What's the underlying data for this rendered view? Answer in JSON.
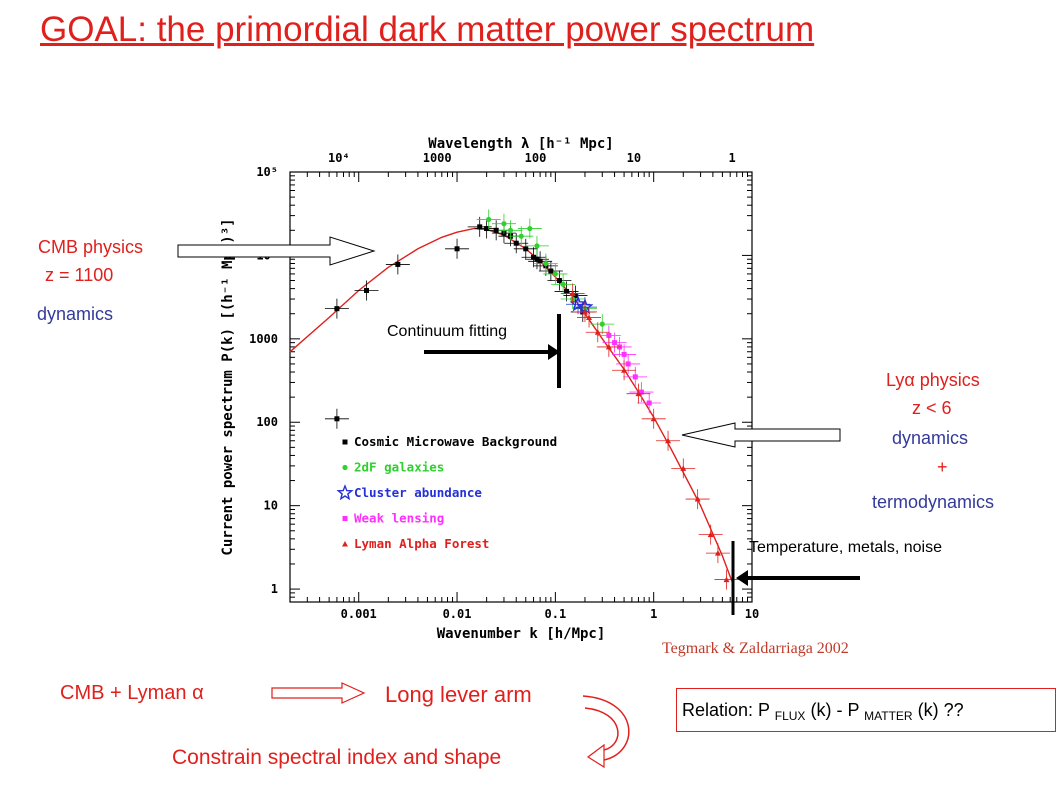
{
  "slide": {
    "title": "GOAL: the primordial dark matter power spectrum",
    "cmb_label_line1": "CMB physics",
    "cmb_label_line2": "z = 1100",
    "cmb_label_line3": "dynamics",
    "lya_label_line1": "Lyα physics",
    "lya_label_line2": "z < 6",
    "lya_label_line3": "dynamics",
    "lya_label_line4": "+",
    "lya_label_line5": "termodynamics",
    "continuum_label": "Continuum fitting",
    "temperature_label": "Temperature, metals, noise",
    "citation": "Tegmark & Zaldarriaga 2002",
    "cmb_lyman": "CMB + Lyman α",
    "lever_arm": "Long lever arm",
    "constrain": "Constrain spectral index and shape",
    "relation": {
      "prefix": "Relation: P",
      "flux_sub": "FLUX",
      "middle": "(k) -  P",
      "matter_sub": "MATTER",
      "suffix": "(k) ??"
    }
  },
  "chart_data": {
    "type": "scatter",
    "title": "",
    "xlabel": "Wavenumber k [h/Mpc]",
    "ylabel": "Current power spectrum P(k) [(h⁻¹ Mpc)³]",
    "top_xlabel": "Wavelength λ [h⁻¹ Mpc]",
    "x_scale": "log",
    "y_scale": "log",
    "xlim": [
      0.0002,
      10
    ],
    "ylim": [
      0.7,
      100000
    ],
    "x_ticks": [
      "0.001",
      "0.01",
      "0.1",
      "1",
      "10"
    ],
    "y_ticks": [
      "1",
      "10",
      "100",
      "1000",
      "10⁴",
      "10⁵"
    ],
    "top_ticks": [
      "10⁴",
      "1000",
      "100",
      "10",
      "1"
    ],
    "legend_position": "lower-left",
    "model_curve": {
      "color": "#e0201c",
      "points": [
        [
          0.0002,
          700
        ],
        [
          0.0005,
          1800
        ],
        [
          0.001,
          3800
        ],
        [
          0.002,
          7200
        ],
        [
          0.004,
          12000
        ],
        [
          0.007,
          16500
        ],
        [
          0.01,
          19000
        ],
        [
          0.015,
          21000
        ],
        [
          0.02,
          20500
        ],
        [
          0.03,
          17500
        ],
        [
          0.05,
          12000
        ],
        [
          0.07,
          8500
        ],
        [
          0.1,
          5500
        ],
        [
          0.15,
          3200
        ],
        [
          0.2,
          2000
        ],
        [
          0.3,
          1000
        ],
        [
          0.5,
          430
        ],
        [
          0.7,
          230
        ],
        [
          1.0,
          115
        ],
        [
          1.5,
          48
        ],
        [
          2.0,
          25
        ],
        [
          3.0,
          10
        ],
        [
          5.0,
          2.5
        ],
        [
          6.5,
          1.1
        ]
      ]
    },
    "series": [
      {
        "name": "Cosmic Microwave Background",
        "marker": "square",
        "color": "#000000",
        "points": [
          [
            0.0006,
            2300
          ],
          [
            0.0006,
            110
          ],
          [
            0.0012,
            3800
          ],
          [
            0.0025,
            7800
          ],
          [
            0.01,
            12000
          ],
          [
            0.017,
            22000
          ],
          [
            0.02,
            21000
          ],
          [
            0.025,
            20000
          ],
          [
            0.03,
            18500
          ],
          [
            0.035,
            17000
          ],
          [
            0.04,
            14000
          ],
          [
            0.05,
            12000
          ],
          [
            0.06,
            9500
          ],
          [
            0.065,
            9000
          ],
          [
            0.07,
            8500
          ],
          [
            0.08,
            7500
          ],
          [
            0.09,
            6500
          ],
          [
            0.11,
            5000
          ],
          [
            0.13,
            3700
          ],
          [
            0.16,
            3300
          ],
          [
            0.19,
            2100
          ]
        ]
      },
      {
        "name": "2dF galaxies",
        "marker": "circle",
        "color": "#2fd02f",
        "points": [
          [
            0.021,
            27000
          ],
          [
            0.03,
            24000
          ],
          [
            0.035,
            20000
          ],
          [
            0.045,
            17000
          ],
          [
            0.055,
            21000
          ],
          [
            0.065,
            13000
          ],
          [
            0.08,
            8000
          ],
          [
            0.1,
            6000
          ],
          [
            0.12,
            4500
          ],
          [
            0.15,
            3000
          ],
          [
            0.2,
            2300
          ],
          [
            0.3,
            1500
          ]
        ]
      },
      {
        "name": "Cluster abundance",
        "marker": "star",
        "color": "#2430d8",
        "points": [
          [
            0.17,
            2600
          ],
          [
            0.2,
            2400
          ]
        ]
      },
      {
        "name": "Weak lensing",
        "marker": "square",
        "color": "#ff30ff",
        "points": [
          [
            0.35,
            1100
          ],
          [
            0.4,
            900
          ],
          [
            0.45,
            800
          ],
          [
            0.5,
            650
          ],
          [
            0.55,
            500
          ],
          [
            0.65,
            350
          ],
          [
            0.75,
            230
          ],
          [
            0.9,
            170
          ]
        ]
      },
      {
        "name": "Lyman Alpha Forest",
        "marker": "triangle",
        "color": "#e0201c",
        "points": [
          [
            0.15,
            3500
          ],
          [
            0.2,
            2100
          ],
          [
            0.22,
            1800
          ],
          [
            0.27,
            1200
          ],
          [
            0.35,
            800
          ],
          [
            0.5,
            420
          ],
          [
            0.7,
            220
          ],
          [
            1.0,
            110
          ],
          [
            1.4,
            60
          ],
          [
            2.0,
            28
          ],
          [
            2.8,
            12
          ],
          [
            3.8,
            4.5
          ],
          [
            4.5,
            2.7
          ],
          [
            5.5,
            1.3
          ]
        ]
      }
    ]
  }
}
